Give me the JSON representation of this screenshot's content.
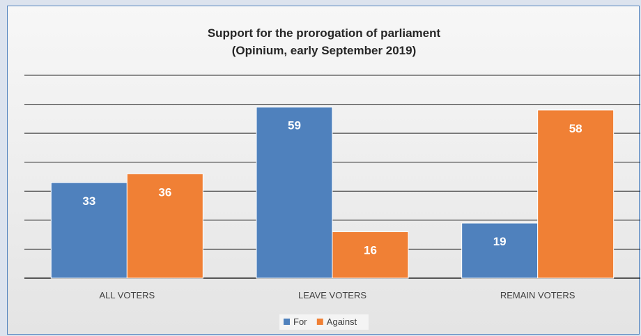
{
  "chart_data": {
    "type": "bar",
    "title": "Support for the prorogation of parliament",
    "subtitle": "(Opinium, early September 2019)",
    "categories": [
      "ALL VOTERS",
      "LEAVE VOTERS",
      "REMAIN VOTERS"
    ],
    "series": [
      {
        "name": "For",
        "values": [
          33,
          59,
          19
        ],
        "color": "#4f81bd"
      },
      {
        "name": "Against",
        "values": [
          36,
          16,
          58
        ],
        "color": "#f08035"
      }
    ],
    "ylim": [
      0,
      70
    ],
    "grid": true,
    "gridline_step": 10,
    "data_labels": true,
    "legend_position": "bottom"
  }
}
